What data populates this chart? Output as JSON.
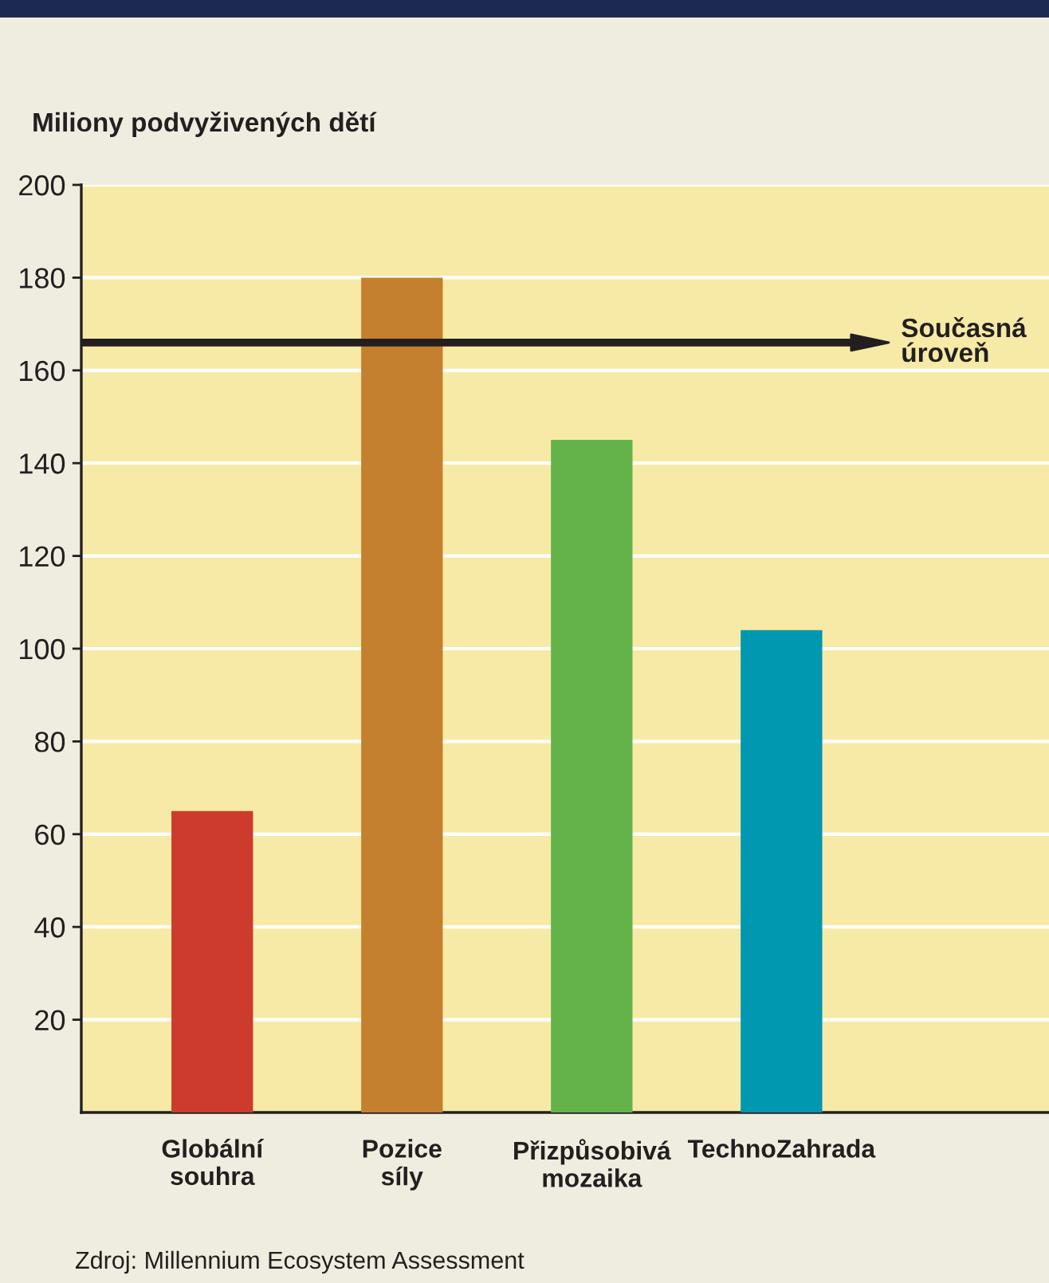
{
  "chart_data": {
    "type": "bar",
    "ylabel": "Miliony podvyživených dětí",
    "categories": [
      "Globální souhra",
      "Pozice síly",
      "Přizpůsobivá mozaika",
      "TechnoZahrada"
    ],
    "values": [
      65,
      180,
      145,
      104
    ],
    "colors": [
      "#cc3b2c",
      "#c4802e",
      "#63b34a",
      "#0097b0"
    ],
    "ylim": [
      0,
      200
    ],
    "yticks": [
      20,
      40,
      60,
      80,
      100,
      120,
      140,
      160,
      180,
      200
    ],
    "grid": "y",
    "ref_lines": [
      {
        "axis": "y",
        "value": 166,
        "label": "Současná úroveň",
        "color": "#231f20"
      }
    ],
    "annotations": [
      "Zdroj: Millennium Ecosystem Assessment"
    ]
  }
}
